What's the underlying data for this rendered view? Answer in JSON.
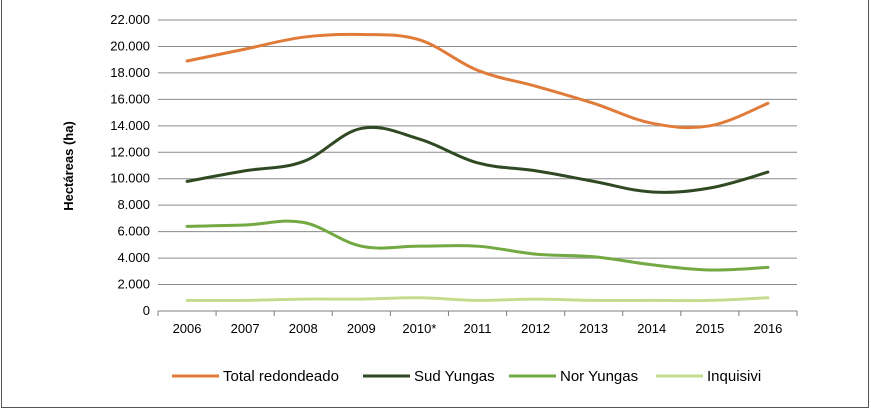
{
  "chart_data": {
    "type": "line",
    "title": "",
    "xlabel": "",
    "ylabel": "Hectáreas (ha)",
    "ylim": [
      0,
      22000
    ],
    "yticks": [
      0,
      2000,
      4000,
      6000,
      8000,
      10000,
      12000,
      14000,
      16000,
      18000,
      20000,
      22000
    ],
    "ytick_labels": [
      "0",
      "2.000",
      "4.000",
      "6.000",
      "8.000",
      "10.000",
      "12.000",
      "14.000",
      "16.000",
      "18.000",
      "20.000",
      "22.000"
    ],
    "categories": [
      "2006",
      "2007",
      "2008",
      "2009",
      "2010*",
      "2011",
      "2012",
      "2013",
      "2014",
      "2015",
      "2016"
    ],
    "grid": "horizontal",
    "legend_position": "bottom",
    "series": [
      {
        "name": "Total redondeado",
        "color": "#e07b39",
        "values": [
          18900,
          19800,
          20700,
          20900,
          20500,
          18200,
          17000,
          15700,
          14200,
          14000,
          15700
        ]
      },
      {
        "name": "Sud Yungas",
        "color": "#2f4a23",
        "values": [
          9800,
          10600,
          11300,
          13800,
          13000,
          11200,
          10600,
          9800,
          9000,
          9300,
          10500
        ]
      },
      {
        "name": "Nor Yungas",
        "color": "#73a943",
        "values": [
          6400,
          6500,
          6700,
          4900,
          4900,
          4900,
          4300,
          4100,
          3500,
          3100,
          3300
        ]
      },
      {
        "name": "Inquisivi",
        "color": "#c5dc8c",
        "values": [
          800,
          800,
          900,
          900,
          1000,
          800,
          900,
          800,
          800,
          800,
          1000
        ]
      }
    ]
  }
}
